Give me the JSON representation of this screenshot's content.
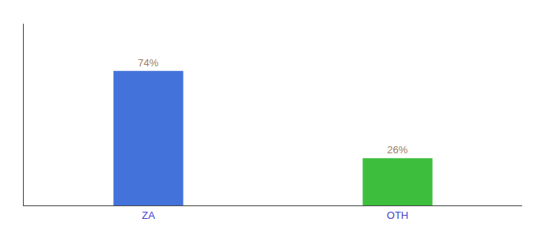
{
  "chart_data": {
    "type": "bar",
    "categories": [
      "ZA",
      "OTH"
    ],
    "values": [
      74,
      26
    ],
    "colors": [
      "#4472db",
      "#3dbf3d"
    ],
    "value_labels": [
      "74%",
      "26%"
    ],
    "data_labels": true,
    "ylim": [
      0,
      100
    ],
    "grid": false,
    "tick_labels": "x"
  }
}
